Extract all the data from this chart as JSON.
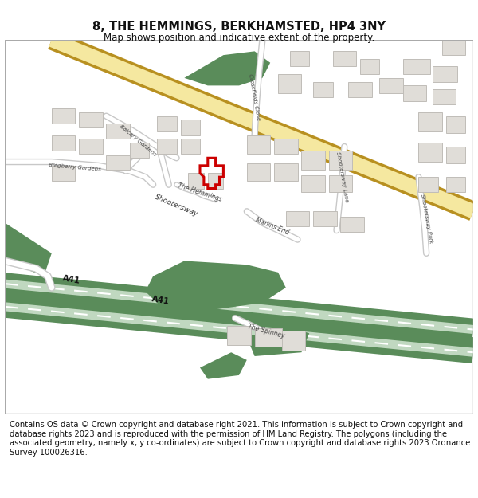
{
  "title": "8, THE HEMMINGS, BERKHAMSTED, HP4 3NY",
  "subtitle": "Map shows position and indicative extent of the property.",
  "footer": "Contains OS data © Crown copyright and database right 2021. This information is subject to Crown copyright and database rights 2023 and is reproduced with the permission of HM Land Registry. The polygons (including the associated geometry, namely x, y co-ordinates) are subject to Crown copyright and database rights 2023 Ordnance Survey 100026316.",
  "bg_color": "#ffffff",
  "map_bg": "#ffffff",
  "road_yellow": "#f0d080",
  "road_yellow_light": "#faf0c0",
  "road_white": "#ffffff",
  "road_white_border": "#c8c8c8",
  "green_dark": "#5a8c5a",
  "green_mid": "#6fa86f",
  "green_light": "#b8d4b8",
  "building_fill": "#e0ddd8",
  "building_stroke": "#c0bdb8",
  "plot_stroke": "#cc0000",
  "text_color": "#444444",
  "title_fontsize": 10.5,
  "subtitle_fontsize": 8.5,
  "footer_fontsize": 7.2,
  "a41_green_dark": "#5a8c5a",
  "a41_green_light": "#c0d8c0",
  "shootersway_yellow": "#e8c040",
  "shootersway_light": "#f5e8a0"
}
